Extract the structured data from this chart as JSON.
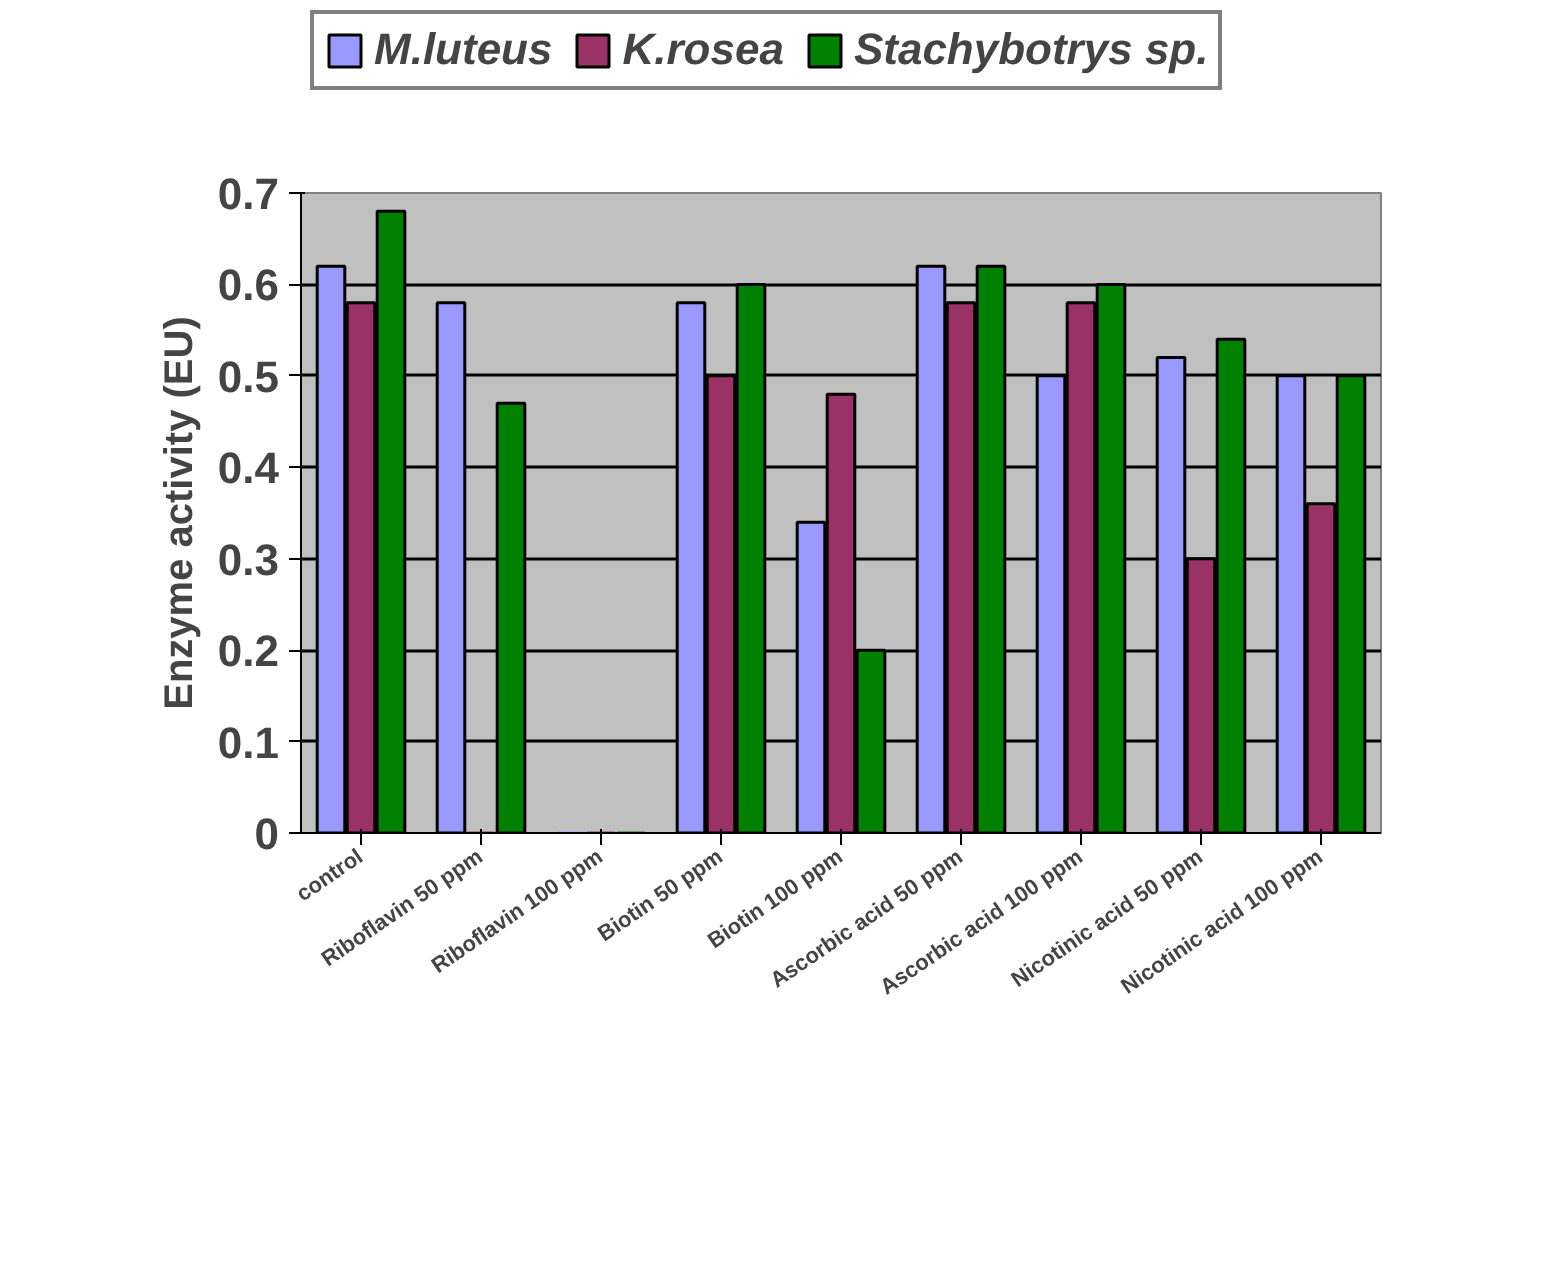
{
  "chart_data": {
    "type": "bar",
    "ylabel": "Enzyme activity (EU)",
    "categories": [
      "control",
      "Riboflavin 50 ppm",
      "Riboflavin 100 ppm",
      "Biotin 50 ppm",
      "Biotin 100 ppm",
      "Ascorbic acid 50 ppm",
      "Ascorbic acid 100 ppm",
      "Nicotinic acid 50 ppm",
      "Nicotinic acid 100 ppm"
    ],
    "series": [
      {
        "name": "M.luteus",
        "color": "#9999ff",
        "values": [
          0.62,
          0.58,
          0,
          0.58,
          0.34,
          0.62,
          0.5,
          0.52,
          0.5
        ]
      },
      {
        "name": "K.rosea",
        "color": "#993366",
        "values": [
          0.58,
          0,
          0,
          0.5,
          0.48,
          0.58,
          0.58,
          0.3,
          0.36
        ]
      },
      {
        "name": "Stachybotrys sp.",
        "color": "#008000",
        "values": [
          0.68,
          0.47,
          0,
          0.6,
          0.2,
          0.62,
          0.6,
          0.54,
          0.5
        ]
      }
    ],
    "ylim": [
      0,
      0.7
    ],
    "yticks": [
      0,
      0.1,
      0.2,
      0.3,
      0.4,
      0.5,
      0.6,
      0.7
    ],
    "grid": "y",
    "legend": "top"
  }
}
